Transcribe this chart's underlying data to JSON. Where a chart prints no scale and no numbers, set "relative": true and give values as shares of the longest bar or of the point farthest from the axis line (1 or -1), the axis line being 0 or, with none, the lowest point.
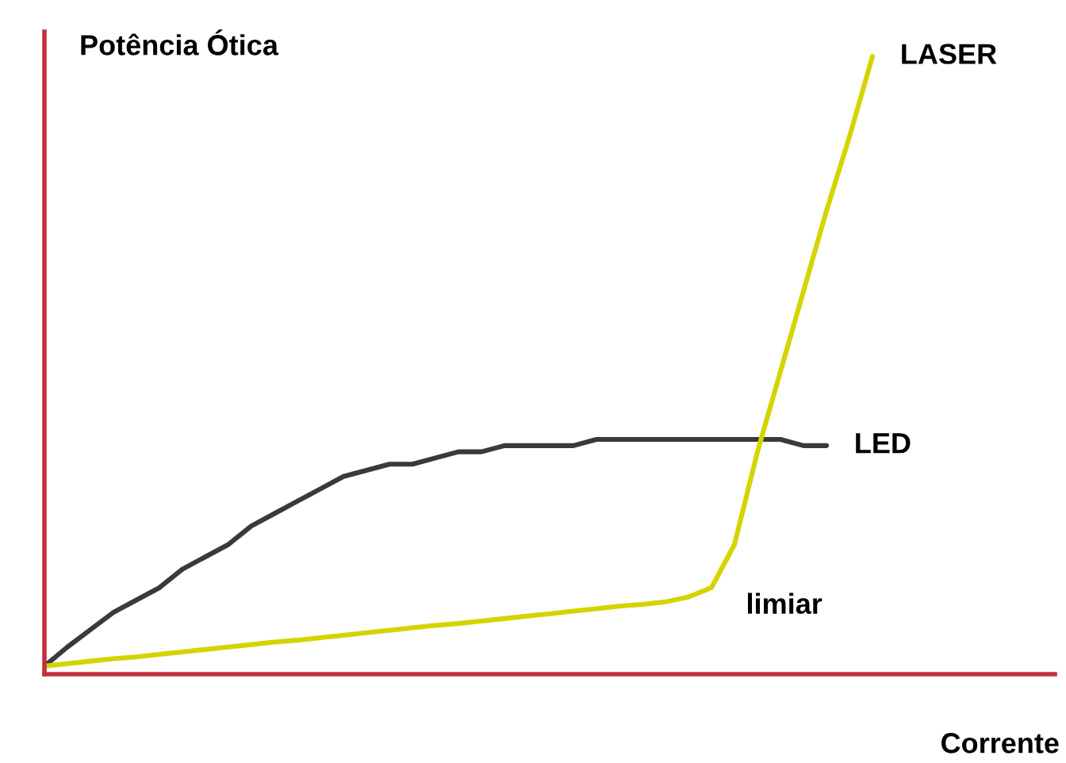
{
  "chart_data": {
    "type": "line",
    "relative": true,
    "xlabel": "Corrente",
    "ylabel": "Potência Ótica",
    "categories": [
      null,
      null,
      null,
      null,
      null,
      null,
      null,
      null,
      null,
      null,
      null,
      null,
      null,
      null,
      null,
      null,
      null,
      null,
      null,
      null,
      null,
      null,
      null,
      null,
      null,
      null,
      null,
      null,
      null,
      null,
      null,
      null,
      null,
      null,
      null,
      null,
      null
    ],
    "series": [
      {
        "name": "LED",
        "color": "#3a3a3a",
        "values": [
          0.013,
          0.044,
          0.072,
          0.1,
          0.12,
          0.14,
          0.17,
          0.19,
          0.21,
          0.24,
          0.26,
          0.28,
          0.3,
          0.32,
          0.33,
          0.34,
          0.34,
          0.35,
          0.36,
          0.36,
          0.37,
          0.37,
          0.37,
          0.37,
          0.38,
          0.38,
          0.38,
          0.38,
          0.38,
          0.38,
          0.38,
          0.38,
          0.38,
          0.37,
          0.37,
          null,
          null
        ]
      },
      {
        "name": "LASER",
        "color": "#d4d400",
        "values": [
          0.013,
          0.017,
          0.021,
          0.025,
          0.028,
          0.032,
          0.036,
          0.04,
          0.044,
          0.048,
          0.052,
          0.055,
          0.059,
          0.063,
          0.067,
          0.071,
          0.075,
          0.079,
          0.082,
          0.086,
          0.09,
          0.094,
          0.098,
          0.102,
          0.106,
          0.11,
          0.113,
          0.117,
          0.125,
          0.14,
          0.21,
          0.36,
          0.49,
          0.62,
          0.75,
          0.87,
          1.0
        ]
      }
    ],
    "annotations": [
      "limiar"
    ],
    "legend": false,
    "grid": false,
    "marker": "none",
    "line_style": "solid"
  }
}
